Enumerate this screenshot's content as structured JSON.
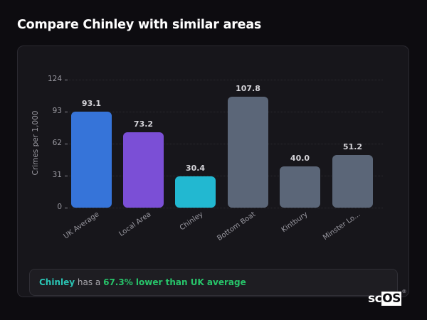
{
  "header": {
    "title": "Compare Chinley with similar areas"
  },
  "chart_data": {
    "type": "bar",
    "title": "Compare Chinley with similar areas",
    "xlabel": "",
    "ylabel": "Crimes per 1,000",
    "ylim": [
      0,
      124
    ],
    "yticks": [
      0,
      31,
      62,
      93,
      124
    ],
    "grid": true,
    "categories": [
      "UK Average",
      "Local Area",
      "Chinley",
      "Bottom Boat",
      "Kintbury",
      "Minster Lo..."
    ],
    "values": [
      93.1,
      73.2,
      30.4,
      107.8,
      40.0,
      51.2
    ],
    "value_labels": [
      "93.1",
      "73.2",
      "30.4",
      "107.8",
      "40.0",
      "51.2"
    ],
    "colors": [
      "#3674d9",
      "#7b4fd6",
      "#22b8d1",
      "#5b6678",
      "#5b6678",
      "#5b6678"
    ]
  },
  "summary": {
    "place": "Chinley",
    "middle": " has a ",
    "stat": "67.3% lower than UK average"
  },
  "brand": {
    "logo_sc": "sc",
    "logo_os": "OS",
    "reg": "®"
  }
}
